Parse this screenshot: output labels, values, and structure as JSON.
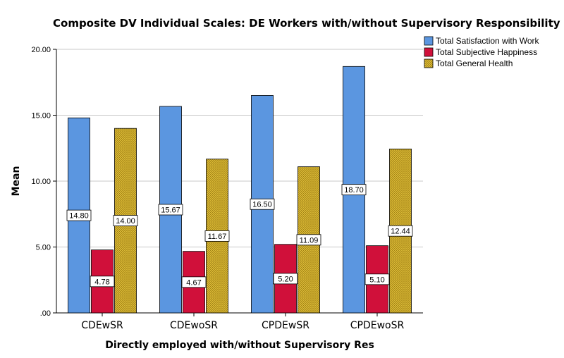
{
  "chart_data": {
    "type": "bar",
    "title": "Composite DV Individual Scales: DE Workers with/without Supervisory Responsibility",
    "xlabel": "Directly employed with/without Supervisory Res",
    "ylabel": "Mean",
    "ylim": [
      0,
      20
    ],
    "yticks": [
      0,
      5,
      10,
      15,
      20
    ],
    "ytick_labels": [
      ".00",
      "5.00",
      "10.00",
      "15.00",
      "20.00"
    ],
    "grid": true,
    "legend_position": "top-right",
    "categories": [
      "CDEwSR",
      "CDEwoSR",
      "CPDEwSR",
      "CPDEwoSR"
    ],
    "series": [
      {
        "name": "Total Satisfaction with Work",
        "color": "#5b96e0",
        "pattern": "solid",
        "values": [
          14.8,
          15.67,
          16.5,
          18.7
        ],
        "labels": [
          "14.80",
          "15.67",
          "16.50",
          "18.70"
        ]
      },
      {
        "name": "Total Subjective Happiness",
        "color": "#d0103a",
        "pattern": "solid",
        "values": [
          4.78,
          4.67,
          5.2,
          5.1
        ],
        "labels": [
          "4.78",
          "4.67",
          "5.20",
          "5.10"
        ]
      },
      {
        "name": "Total General Health",
        "color": "#d9b22a",
        "pattern": "crosshatch",
        "values": [
          14.0,
          11.67,
          11.09,
          12.44
        ],
        "labels": [
          "14.00",
          "11.67",
          "11.09",
          "12.44"
        ]
      }
    ]
  }
}
